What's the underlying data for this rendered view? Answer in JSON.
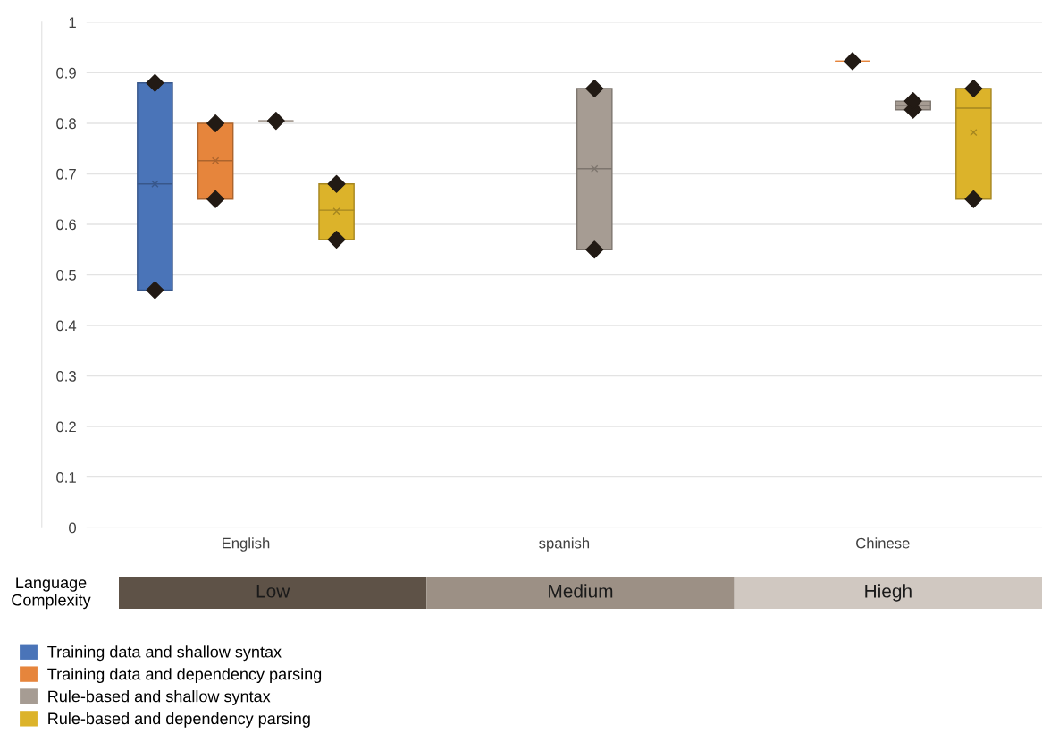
{
  "chart_data": {
    "type": "box",
    "categories": [
      "English",
      "spanish",
      "Chinese"
    ],
    "ylim": [
      0,
      1
    ],
    "yticks": [
      0,
      0.1,
      0.2,
      0.3,
      0.4,
      0.5,
      0.6,
      0.7,
      0.8,
      0.9,
      1
    ],
    "grid": "y",
    "legend": "bottom left",
    "marker": "diamond",
    "annotations": [
      "Language Complexity",
      "Low",
      "Medium",
      "Hiegh"
    ],
    "series": [
      {
        "name": "Training data and shallow syntax",
        "color": "#4a74b8",
        "boxes": [
          {
            "low": 0.47,
            "q1": 0.47,
            "median": 0.68,
            "q3": 0.88,
            "high": 0.88,
            "mean": 0.68,
            "outliers": [
              0.47,
              0.88
            ]
          },
          null,
          null
        ]
      },
      {
        "name": "Training data and dependency parsing",
        "color": "#e6853c",
        "boxes": [
          {
            "low": 0.65,
            "q1": 0.65,
            "median": 0.726,
            "q3": 0.8,
            "high": 0.8,
            "mean": 0.726,
            "outliers": [
              0.65,
              0.8
            ]
          },
          null,
          {
            "low": 0.923,
            "q1": 0.923,
            "median": 0.923,
            "q3": 0.923,
            "high": 0.923,
            "outliers": [
              0.923
            ]
          }
        ]
      },
      {
        "name": "Rule-based and shallow syntax",
        "color": "#a69c93",
        "boxes": [
          {
            "low": 0.805,
            "q1": 0.805,
            "median": 0.805,
            "q3": 0.805,
            "high": 0.805,
            "outliers": [
              0.805
            ]
          },
          {
            "low": 0.55,
            "q1": 0.55,
            "median": 0.71,
            "q3": 0.869,
            "high": 0.869,
            "mean": 0.71,
            "outliers": [
              0.55,
              0.869
            ]
          },
          {
            "low": 0.827,
            "q1": 0.827,
            "median": 0.835,
            "q3": 0.844,
            "high": 0.844,
            "outliers": [
              0.827,
              0.844
            ]
          }
        ]
      },
      {
        "name": "Rule-based and dependency parsing",
        "color": "#dcb32a",
        "boxes": [
          {
            "low": 0.57,
            "q1": 0.57,
            "median": 0.628,
            "q3": 0.68,
            "high": 0.68,
            "mean": 0.626,
            "outliers": [
              0.57,
              0.68
            ]
          },
          null,
          {
            "low": 0.65,
            "q1": 0.65,
            "median": 0.83,
            "q3": 0.869,
            "high": 0.869,
            "mean": 0.782,
            "outliers": [
              0.65,
              0.869
            ]
          }
        ]
      }
    ]
  }
}
